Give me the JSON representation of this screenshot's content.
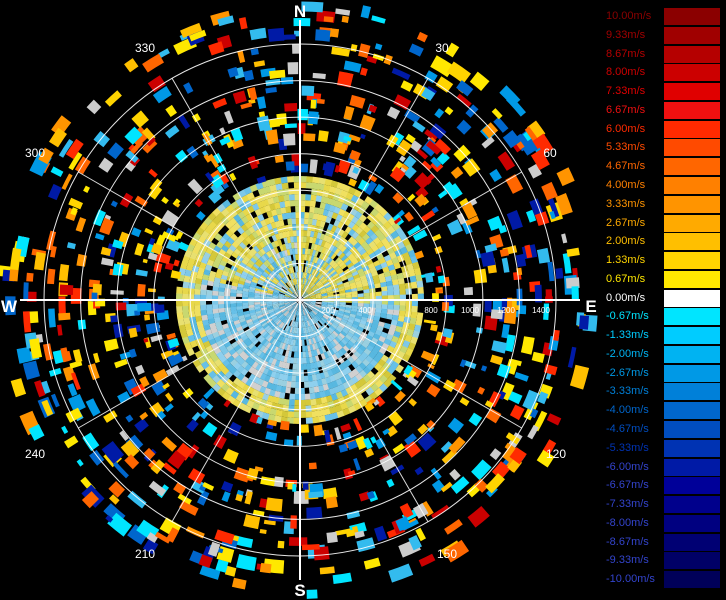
{
  "chart_data": {
    "type": "ppi-radial-velocity",
    "compass": {
      "north": "N",
      "east": "E",
      "south": "S",
      "west": "W"
    },
    "azimuth_labels": [
      "30",
      "60",
      "120",
      "150",
      "210",
      "240",
      "300",
      "330"
    ],
    "range_ticks": [
      "200",
      "400",
      "800",
      "1000",
      "1200",
      "1400"
    ],
    "range_max": 1400,
    "legend": {
      "labels": [
        "10.00m/s",
        "9.33m/s",
        "8.67m/s",
        "8.00m/s",
        "7.33m/s",
        "6.67m/s",
        "6.00m/s",
        "5.33m/s",
        "4.67m/s",
        "4.00m/s",
        "3.33m/s",
        "2.67m/s",
        "2.00m/s",
        "1.33m/s",
        "0.67m/s",
        "0.00m/s",
        "-0.67m/s",
        "-1.33m/s",
        "-2.00m/s",
        "-2.67m/s",
        "-3.33m/s",
        "-4.00m/s",
        "-4.67m/s",
        "-5.33m/s",
        "-6.00m/s",
        "-6.67m/s",
        "-7.33m/s",
        "-8.00m/s",
        "-8.67m/s",
        "-9.33m/s",
        "-10.00m/s"
      ],
      "colors": [
        "#8b0000",
        "#a00000",
        "#b50000",
        "#cc0000",
        "#e00000",
        "#f01010",
        "#ff2a00",
        "#ff4a00",
        "#ff6600",
        "#ff8000",
        "#ff9400",
        "#ffaa00",
        "#ffbf00",
        "#ffd400",
        "#ffe800",
        "#ffffff",
        "#00e5ff",
        "#00ccff",
        "#00b3f2",
        "#0099e6",
        "#0080d9",
        "#0066cc",
        "#004dbf",
        "#0033b3",
        "#001aa6",
        "#000099",
        "#00008c",
        "#000080",
        "#000073",
        "#000066",
        "#000059"
      ]
    }
  }
}
